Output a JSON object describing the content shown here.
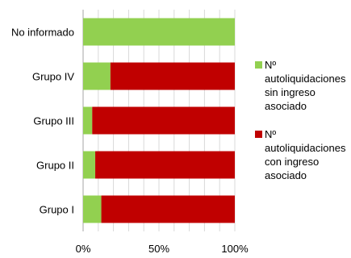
{
  "chart_data": {
    "type": "bar",
    "orientation": "horizontal",
    "stacked": true,
    "percent_stacked": true,
    "categories": [
      "No informado",
      "Grupo IV",
      "Grupo III",
      "Grupo II",
      "Grupo I"
    ],
    "series": [
      {
        "name": "Nº autoliquidaciones sin ingreso asociado",
        "color": "#92d050",
        "values": [
          100,
          18,
          6,
          8,
          12
        ]
      },
      {
        "name": "Nº autoliquidaciones con ingreso asociado",
        "color": "#c00000",
        "values": [
          0,
          82,
          94,
          92,
          88
        ]
      }
    ],
    "xlim": [
      0,
      100
    ],
    "x_ticks": [
      0,
      50,
      100
    ],
    "x_tick_labels": [
      "0%",
      "50%",
      "100%"
    ],
    "grid": "vertical-minor",
    "legend_placement": "right"
  }
}
